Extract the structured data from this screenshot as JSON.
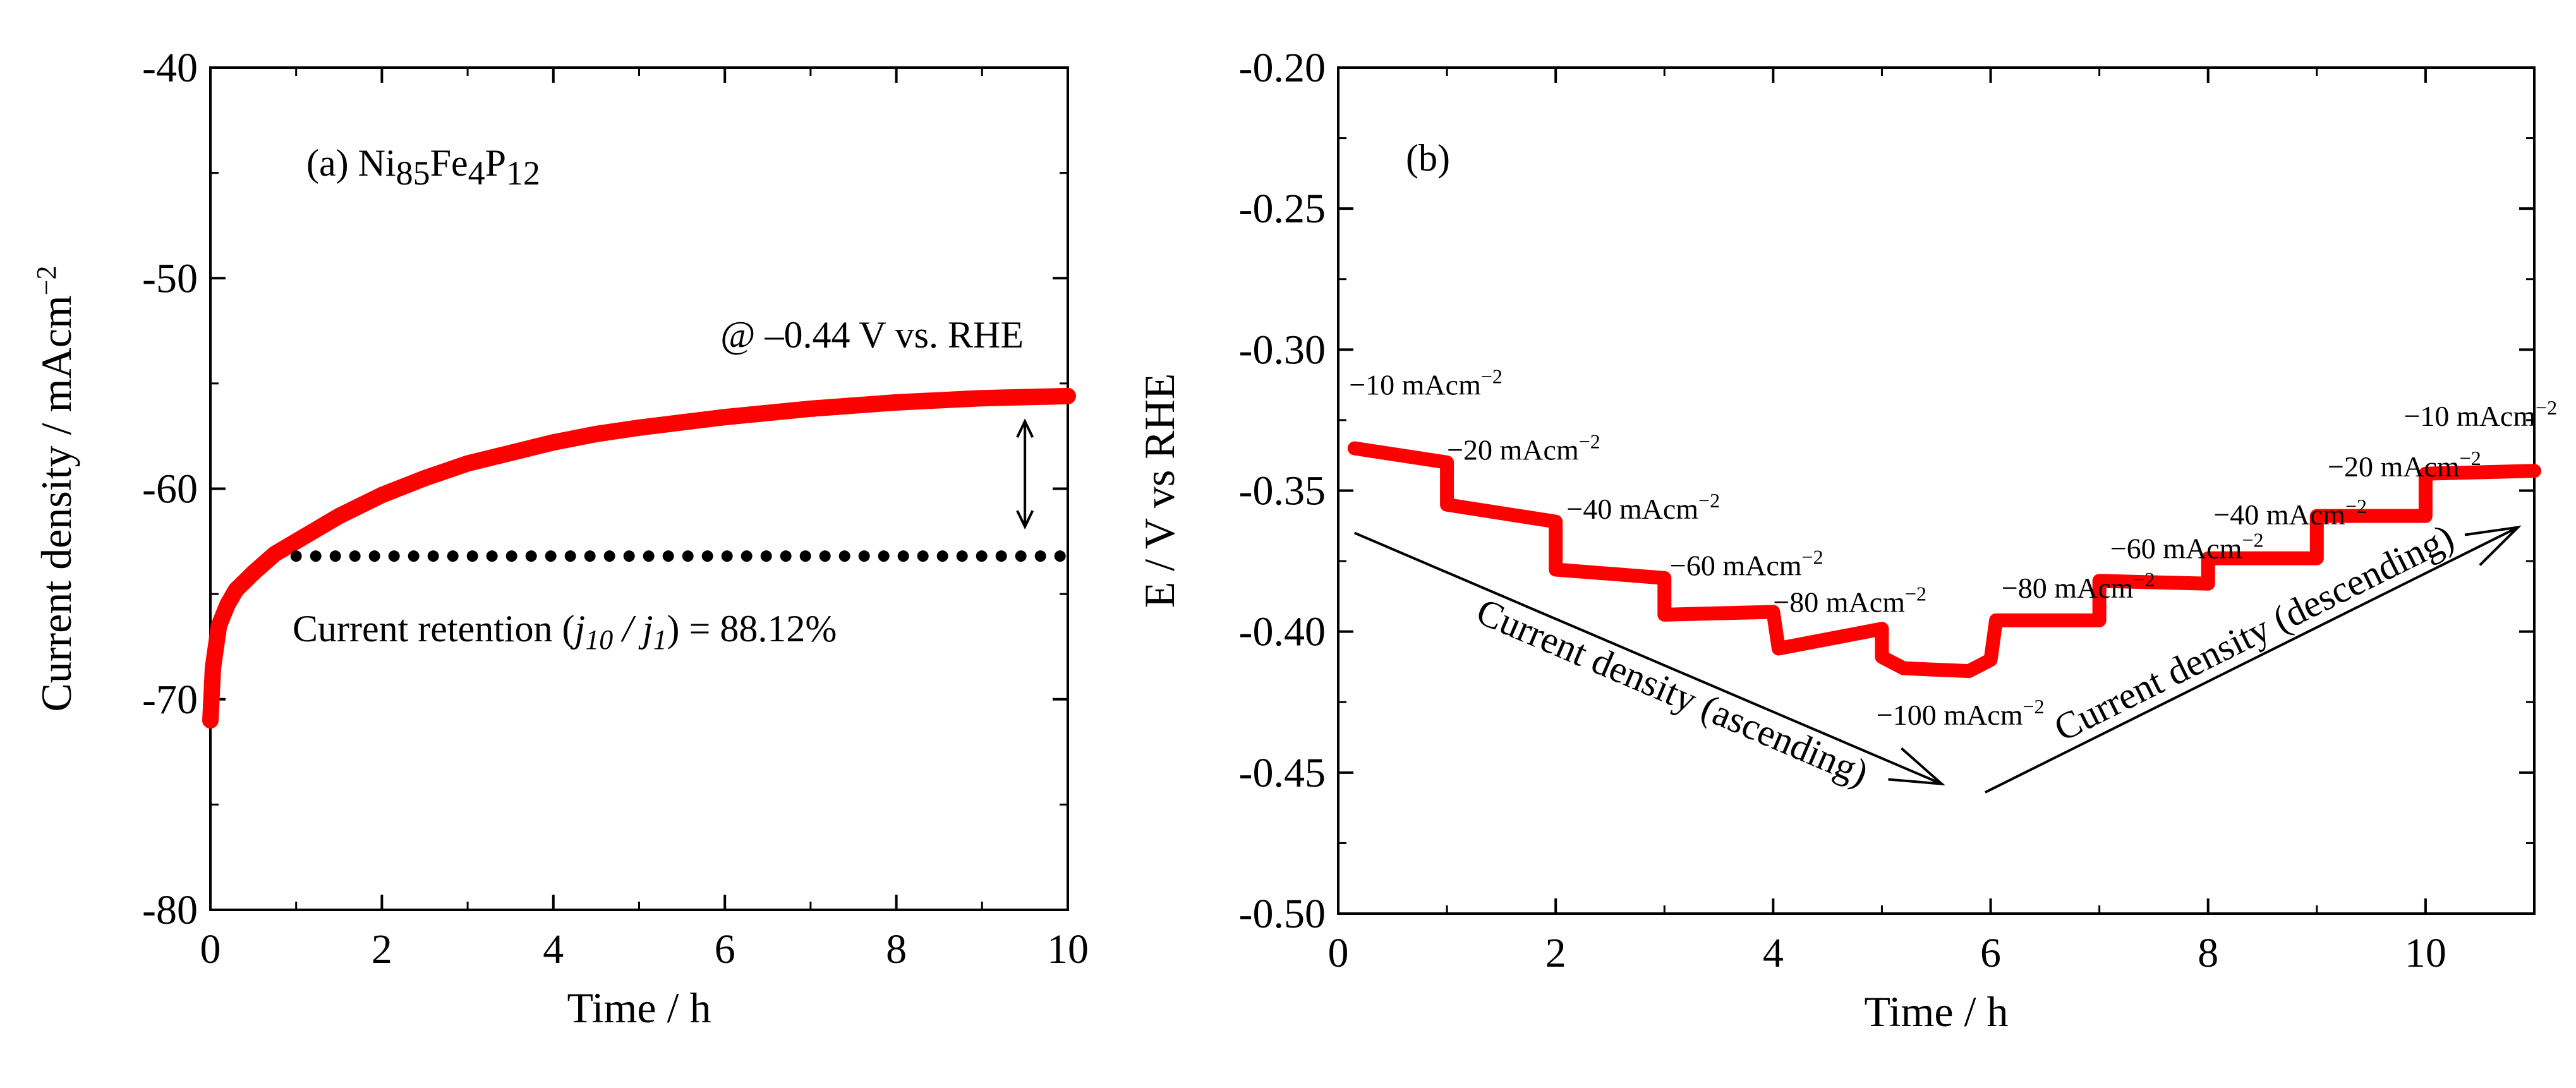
{
  "colors": {
    "curve": "#ff0000",
    "ink": "#000000"
  },
  "chart_data": [
    {
      "type": "line",
      "panel": "(a)",
      "material": {
        "base": "Ni",
        "sub1": "85",
        "el2": "Fe",
        "sub2": "4",
        "el3": "P",
        "sub3": "12"
      },
      "condition": "@ –0.44 V vs. RHE",
      "retention": {
        "prefix": "Current retention (",
        "j10": "j",
        "j10_sub": "10",
        "slash": " / ",
        "j1": "j",
        "j1_sub": "1",
        "suffix": ") = 88.12%"
      },
      "xlabel": "Time / h",
      "ylabel": "Current density / mAcm",
      "ylabel_sup": "−2",
      "xlim": [
        0,
        10
      ],
      "ylim": [
        -80,
        -40
      ],
      "x_ticks": [
        0,
        2,
        4,
        6,
        8,
        10
      ],
      "y_ticks": [
        -80,
        -70,
        -60,
        -50,
        -40
      ],
      "x_tick_labels": [
        "0",
        "2",
        "4",
        "6",
        "8",
        "10"
      ],
      "y_tick_labels": [
        "-80",
        "-70",
        "-60",
        "-50",
        "-40"
      ],
      "series": [
        {
          "x": [
            0,
            0.03,
            0.1,
            0.2,
            0.3,
            0.5,
            0.75,
            1,
            1.5,
            2,
            2.5,
            3,
            3.5,
            4,
            4.5,
            5,
            6,
            7,
            8,
            9,
            10
          ],
          "y": [
            -71.0,
            -68.5,
            -66.5,
            -65.5,
            -64.8,
            -64.0,
            -63.1,
            -62.5,
            -61.3,
            -60.3,
            -59.5,
            -58.8,
            -58.3,
            -57.8,
            -57.4,
            -57.1,
            -56.6,
            -56.2,
            -55.9,
            -55.7,
            -55.6
          ]
        }
      ],
      "reference_line": {
        "y": -63.2,
        "x_start": 1.0,
        "x_end": 10
      },
      "double_arrow": {
        "x": 9.5,
        "y_top": -56.8,
        "y_bottom": -61.8
      }
    },
    {
      "type": "line",
      "panel": "(b)",
      "xlabel": "Time / h",
      "ylabel": "E / V vs RHE",
      "xlim": [
        0,
        11
      ],
      "ylim": [
        -0.5,
        -0.2
      ],
      "x_ticks": [
        0,
        2,
        4,
        6,
        8,
        10
      ],
      "y_ticks": [
        -0.5,
        -0.45,
        -0.4,
        -0.35,
        -0.3,
        -0.25,
        -0.2
      ],
      "x_tick_labels": [
        "0",
        "2",
        "4",
        "6",
        "8",
        "10"
      ],
      "y_tick_labels": [
        "-0.50",
        "-0.45",
        "-0.40",
        "-0.35",
        "-0.30",
        "-0.25",
        "-0.20"
      ],
      "series": [
        {
          "x": [
            0.15,
            1.0,
            1.0,
            2.0,
            2.0,
            3.0,
            3.0,
            4.0,
            4.05,
            5.0,
            5.0,
            5.2,
            5.8,
            6.0,
            6.05,
            7.0,
            7.0,
            8.0,
            8.0,
            9.0,
            9.0,
            10.0,
            10.0,
            11.0
          ],
          "y": [
            -0.335,
            -0.34,
            -0.355,
            -0.361,
            -0.378,
            -0.381,
            -0.394,
            -0.393,
            -0.406,
            -0.399,
            -0.409,
            -0.413,
            -0.414,
            -0.41,
            -0.396,
            -0.396,
            -0.382,
            -0.383,
            -0.374,
            -0.374,
            -0.359,
            -0.359,
            -0.344,
            -0.343
          ]
        }
      ],
      "step_labels": [
        {
          "text": "−10 mAcm",
          "sup": "−2",
          "x": 0.1,
          "y": -0.316
        },
        {
          "text": "−20 mAcm",
          "sup": "−2",
          "x": 1.0,
          "y": -0.339
        },
        {
          "text": "−40 mAcm",
          "sup": "−2",
          "x": 2.1,
          "y": -0.36
        },
        {
          "text": "−60 mAcm",
          "sup": "−2",
          "x": 3.05,
          "y": -0.38
        },
        {
          "text": "−80 mAcm",
          "sup": "−2",
          "x": 4.0,
          "y": -0.393
        },
        {
          "text": "−100 mAcm",
          "sup": "−2",
          "x": 4.95,
          "y": -0.433
        },
        {
          "text": "−80 mAcm",
          "sup": "−2",
          "x": 6.1,
          "y": -0.388
        },
        {
          "text": "−60 mAcm",
          "sup": "−2",
          "x": 7.1,
          "y": -0.374
        },
        {
          "text": "−40 mAcm",
          "sup": "−2",
          "x": 8.05,
          "y": -0.362
        },
        {
          "text": "−20 mAcm",
          "sup": "−2",
          "x": 9.1,
          "y": -0.345
        },
        {
          "text": "−10 mAcm",
          "sup": "−2",
          "x": 9.8,
          "y": -0.327
        }
      ],
      "arrows": [
        {
          "label": "Current density (ascending)",
          "x1": 0.15,
          "y1": -0.365,
          "x2": 5.55,
          "y2": -0.454
        },
        {
          "label": "Current density (descending)",
          "x1": 5.95,
          "y1": -0.457,
          "x2": 10.85,
          "y2": -0.363
        }
      ]
    }
  ]
}
